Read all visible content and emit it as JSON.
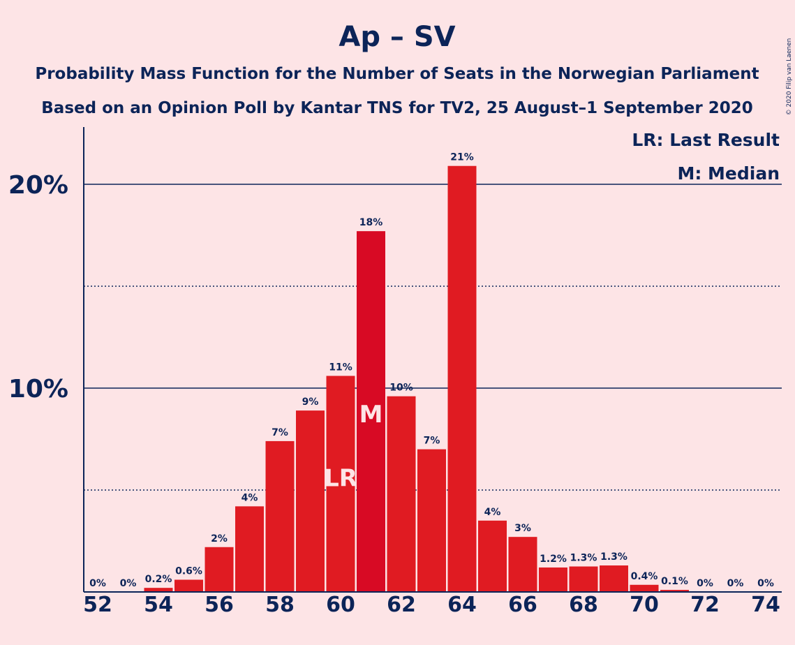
{
  "title": "Ap – SV",
  "subtitle_1": "Probability Mass Function for the Number of Seats in the Norwegian Parliament",
  "subtitle_2": "Based on an Opinion Poll by Kantar TNS for TV2, 25 August–1 September 2020",
  "copyright": "© 2020 Filip van Laenen",
  "legend": {
    "lr": "LR: Last Result",
    "m": "M: Median"
  },
  "colors": {
    "background": "#fde4e6",
    "bar": "#e01b22",
    "bar_median": "#d80a24",
    "text": "#0c2458"
  },
  "chart_data": {
    "type": "bar",
    "title": "Ap – SV",
    "subtitle": "Probability Mass Function for the Number of Seats in the Norwegian Parliament / Based on an Opinion Poll by Kantar TNS for TV2, 25 August–1 September 2020",
    "xlabel": "",
    "ylabel": "",
    "ylim": [
      0,
      22.5
    ],
    "x": [
      52,
      53,
      54,
      55,
      56,
      57,
      58,
      59,
      60,
      61,
      62,
      63,
      64,
      65,
      66,
      67,
      68,
      69,
      70,
      71,
      72,
      73,
      74
    ],
    "values": [
      0,
      0,
      0.2,
      0.6,
      2.2,
      4.2,
      7.4,
      8.9,
      10.6,
      17.7,
      9.6,
      7.0,
      20.9,
      3.5,
      2.7,
      1.2,
      1.25,
      1.3,
      0.35,
      0.1,
      0,
      0,
      0
    ],
    "data_labels": [
      "0%",
      "0%",
      "0.2%",
      "0.6%",
      "2%",
      "4%",
      "7%",
      "9%",
      "11%",
      "18%",
      "10%",
      "7%",
      "21%",
      "4%",
      "3%",
      "1.2%",
      "1.3%",
      "1.3%",
      "0.4%",
      "0.1%",
      "0%",
      "0%",
      "0%"
    ],
    "x_tick_labels": [
      "52",
      "54",
      "56",
      "58",
      "60",
      "62",
      "64",
      "66",
      "68",
      "70",
      "72",
      "74"
    ],
    "y_ticks": [
      {
        "value": 10,
        "label": "10%"
      },
      {
        "value": 20,
        "label": "20%"
      }
    ],
    "y_minor_gridlines": [
      5,
      15
    ],
    "last_result": {
      "x": 60,
      "label": "LR"
    },
    "median": {
      "x": 61,
      "label": "M"
    },
    "legend_position": "top-right",
    "grid": true
  }
}
